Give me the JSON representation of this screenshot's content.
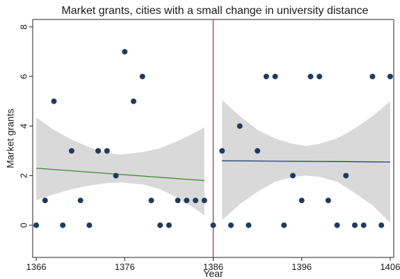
{
  "chart_data": {
    "type": "scatter",
    "title": "Market grants, cities with a small change in university distance",
    "xlabel": "Year",
    "ylabel": "Market grants",
    "xlim": [
      1365.6,
      1406.4
    ],
    "ylim": [
      -1.3,
      8.3
    ],
    "x_ticks": [
      1366,
      1376,
      1386,
      1396,
      1406
    ],
    "y_ticks": [
      0,
      2,
      4,
      6,
      8
    ],
    "grid": false,
    "legend": "none",
    "cutoff_year": 1386,
    "colors": {
      "points": "#1f3a5f",
      "fit_left": "#3a8a2a",
      "fit_right": "#1f3f7a",
      "ci_band": "#d9d9d9",
      "cutoff_line": "#c0304a"
    },
    "series": [
      {
        "kind": "scatter",
        "points": [
          {
            "x": 1366,
            "y": 0
          },
          {
            "x": 1367,
            "y": 1
          },
          {
            "x": 1368,
            "y": 5
          },
          {
            "x": 1369,
            "y": 0
          },
          {
            "x": 1370,
            "y": 3
          },
          {
            "x": 1371,
            "y": 1
          },
          {
            "x": 1372,
            "y": 0
          },
          {
            "x": 1373,
            "y": 3
          },
          {
            "x": 1374,
            "y": 3
          },
          {
            "x": 1375,
            "y": 2
          },
          {
            "x": 1376,
            "y": 7
          },
          {
            "x": 1377,
            "y": 5
          },
          {
            "x": 1378,
            "y": 6
          },
          {
            "x": 1379,
            "y": 1
          },
          {
            "x": 1380,
            "y": 0
          },
          {
            "x": 1381,
            "y": 0
          },
          {
            "x": 1382,
            "y": 1
          },
          {
            "x": 1383,
            "y": 1
          },
          {
            "x": 1384,
            "y": 1
          },
          {
            "x": 1385,
            "y": 1
          },
          {
            "x": 1386,
            "y": 0
          },
          {
            "x": 1387,
            "y": 3
          },
          {
            "x": 1388,
            "y": 0
          },
          {
            "x": 1389,
            "y": 4
          },
          {
            "x": 1390,
            "y": 0
          },
          {
            "x": 1391,
            "y": 3
          },
          {
            "x": 1392,
            "y": 6
          },
          {
            "x": 1393,
            "y": 6
          },
          {
            "x": 1394,
            "y": 0
          },
          {
            "x": 1395,
            "y": 2
          },
          {
            "x": 1396,
            "y": 1
          },
          {
            "x": 1397,
            "y": 6
          },
          {
            "x": 1398,
            "y": 6
          },
          {
            "x": 1399,
            "y": 1
          },
          {
            "x": 1400,
            "y": 0
          },
          {
            "x": 1401,
            "y": 2
          },
          {
            "x": 1402,
            "y": 0
          },
          {
            "x": 1403,
            "y": 0
          },
          {
            "x": 1404,
            "y": 6
          },
          {
            "x": 1405,
            "y": 0
          },
          {
            "x": 1406,
            "y": 6
          }
        ]
      },
      {
        "kind": "fit",
        "segment": "left",
        "x_range": [
          1366,
          1385
        ],
        "line": [
          [
            1366,
            2.3
          ],
          [
            1385,
            1.8
          ]
        ],
        "band": [
          [
            1366,
            1.0,
            4.35
          ],
          [
            1368,
            1.25,
            3.85
          ],
          [
            1370,
            1.45,
            3.45
          ],
          [
            1372,
            1.6,
            3.15
          ],
          [
            1374,
            1.7,
            2.92
          ],
          [
            1375.5,
            1.73,
            2.85
          ],
          [
            1378,
            1.65,
            2.95
          ],
          [
            1380,
            1.45,
            3.1
          ],
          [
            1382,
            1.1,
            3.4
          ],
          [
            1384,
            0.65,
            3.75
          ],
          [
            1385,
            0.4,
            3.95
          ]
        ]
      },
      {
        "kind": "fit",
        "segment": "right",
        "x_range": [
          1387,
          1406
        ],
        "line": [
          [
            1387,
            2.6
          ],
          [
            1406,
            2.55
          ]
        ],
        "band": [
          [
            1387,
            0.2,
            5.05
          ],
          [
            1389,
            0.85,
            4.4
          ],
          [
            1391,
            1.35,
            3.85
          ],
          [
            1393,
            1.75,
            3.5
          ],
          [
            1395,
            1.95,
            3.28
          ],
          [
            1396.5,
            2.0,
            3.2
          ],
          [
            1398,
            1.95,
            3.28
          ],
          [
            1400,
            1.75,
            3.5
          ],
          [
            1402,
            1.3,
            3.9
          ],
          [
            1404,
            0.8,
            4.4
          ],
          [
            1406,
            0.1,
            5.0
          ]
        ]
      }
    ]
  }
}
